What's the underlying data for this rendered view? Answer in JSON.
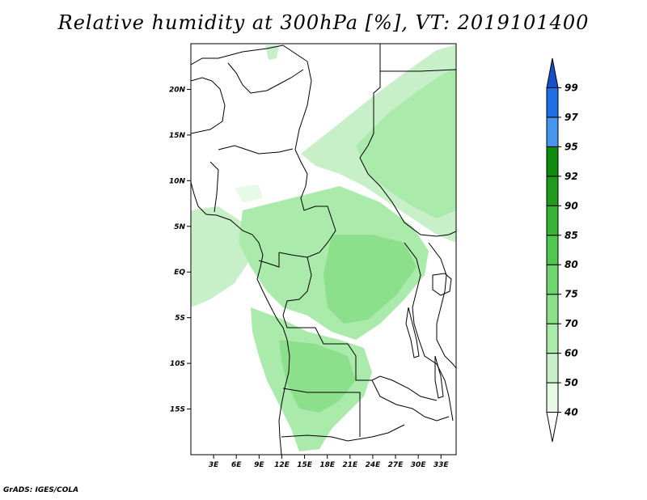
{
  "title": "Relative humidity at 300hPa [%], VT: 2019101400",
  "credit": "GrADS: IGES/COLA",
  "map": {
    "lon_range": [
      0,
      35
    ],
    "lat_range": [
      -20,
      25
    ],
    "lat_ticks": [
      {
        "value": 20,
        "label": "20N"
      },
      {
        "value": 15,
        "label": "15N"
      },
      {
        "value": 10,
        "label": "10N"
      },
      {
        "value": 5,
        "label": "5N"
      },
      {
        "value": 0,
        "label": "EQ"
      },
      {
        "value": -5,
        "label": "5S"
      },
      {
        "value": -10,
        "label": "10S"
      },
      {
        "value": -15,
        "label": "15S"
      }
    ],
    "lon_ticks": [
      {
        "value": 3,
        "label": "3E"
      },
      {
        "value": 6,
        "label": "6E"
      },
      {
        "value": 9,
        "label": "9E"
      },
      {
        "value": 12,
        "label": "12E"
      },
      {
        "value": 15,
        "label": "15E"
      },
      {
        "value": 18,
        "label": "18E"
      },
      {
        "value": 21,
        "label": "21E"
      },
      {
        "value": 24,
        "label": "24E"
      },
      {
        "value": 27,
        "label": "27E"
      },
      {
        "value": 30,
        "label": "30E"
      },
      {
        "value": 33,
        "label": "33E"
      }
    ]
  },
  "colorbar": {
    "levels": [
      "40",
      "50",
      "60",
      "70",
      "75",
      "80",
      "85",
      "90",
      "92",
      "95",
      "97",
      "99"
    ],
    "colors": [
      "#ffffff",
      "#e6fae6",
      "#c8f0c8",
      "#aaeaaa",
      "#8ce08c",
      "#6ed66e",
      "#50c850",
      "#37b437",
      "#1e9b1e",
      "#0f8c0f",
      "#4696f0",
      "#1e6ee6",
      "#1450c8"
    ]
  }
}
